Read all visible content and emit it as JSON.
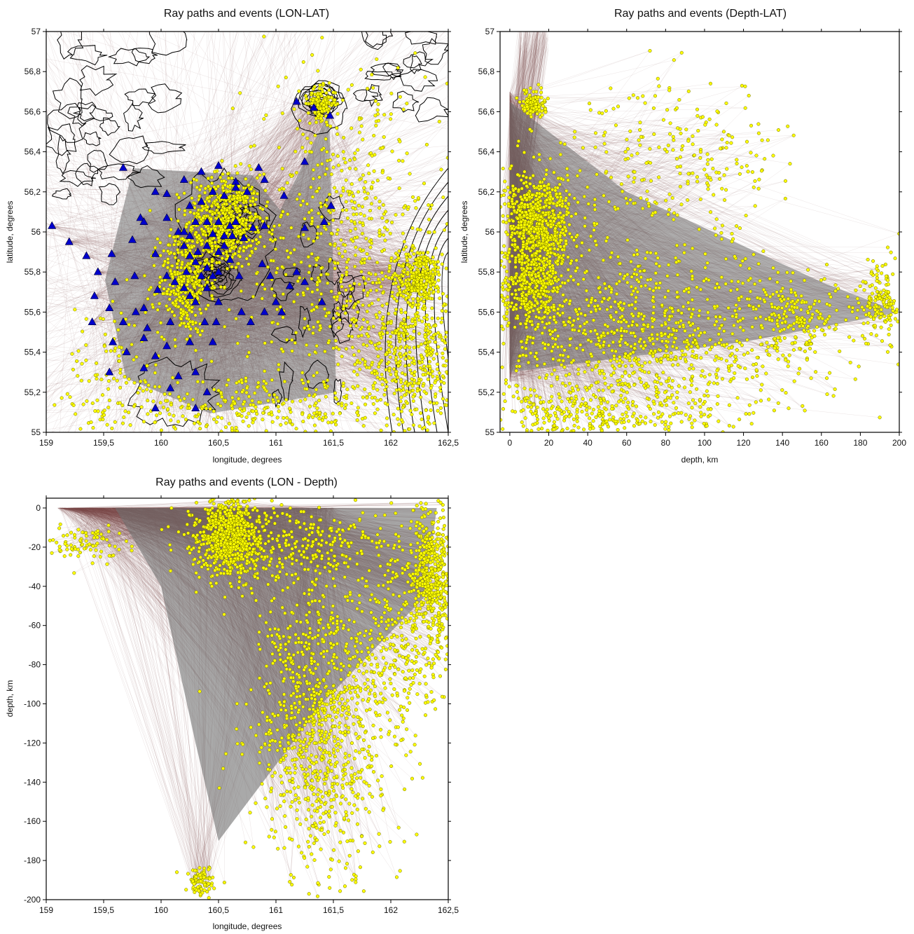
{
  "colors": {
    "ray": "#7a4848",
    "ray_core": "#6f6f6f",
    "event_fill": "#ffff00",
    "event_stroke": "#6b6b00",
    "station_fill": "#0000cc",
    "contour": "#000000"
  },
  "chart_data": [
    {
      "type": "scatter",
      "title": "Ray paths and events (LON-LAT)",
      "xlabel": "longitude, degrees",
      "ylabel": "latitude, degrees",
      "xlim": [
        159,
        162.5
      ],
      "ylim": [
        55,
        57
      ],
      "grid": false,
      "xticks": [
        "159",
        "159,5",
        "160",
        "160,5",
        "161",
        "161,5",
        "162",
        "162,5"
      ],
      "yticks": [
        "55",
        "55,2",
        "55,4",
        "55,6",
        "55,8",
        "56",
        "56,2",
        "56,4",
        "56,6",
        "56,8",
        "57"
      ],
      "series": [
        {
          "kind": "stations",
          "marker": "triangle",
          "points": [
            [
              159.05,
              56.03
            ],
            [
              159.2,
              55.95
            ],
            [
              159.35,
              55.88
            ],
            [
              159.57,
              55.89
            ],
            [
              159.45,
              55.8
            ],
            [
              159.6,
              55.75
            ],
            [
              159.42,
              55.68
            ],
            [
              159.55,
              55.62
            ],
            [
              159.78,
              55.6
            ],
            [
              159.67,
              56.32
            ],
            [
              159.82,
              56.07
            ],
            [
              159.85,
              56.05
            ],
            [
              159.75,
              55.96
            ],
            [
              159.95,
              55.89
            ],
            [
              159.77,
              55.78
            ],
            [
              159.97,
              55.71
            ],
            [
              159.85,
              55.62
            ],
            [
              159.67,
              55.55
            ],
            [
              159.88,
              55.52
            ],
            [
              160.08,
              55.55
            ],
            [
              159.4,
              55.55
            ],
            [
              159.58,
              55.45
            ],
            [
              159.7,
              55.4
            ],
            [
              159.85,
              55.47
            ],
            [
              160.05,
              55.43
            ],
            [
              159.95,
              55.38
            ],
            [
              159.55,
              55.3
            ],
            [
              159.85,
              55.32
            ],
            [
              159.95,
              55.12
            ],
            [
              160.08,
              55.22
            ],
            [
              160.15,
              55.28
            ],
            [
              160.3,
              55.3
            ],
            [
              160.4,
              55.2
            ],
            [
              160.3,
              55.12
            ],
            [
              160.25,
              55.45
            ],
            [
              160.45,
              55.45
            ],
            [
              160.38,
              55.55
            ],
            [
              160.05,
              56.19
            ],
            [
              160.2,
              56.26
            ],
            [
              160.35,
              56.3
            ],
            [
              160.5,
              56.33
            ],
            [
              160.65,
              56.25
            ],
            [
              160.85,
              56.32
            ],
            [
              160.9,
              56.26
            ],
            [
              161.07,
              56.18
            ],
            [
              160.25,
              56.13
            ],
            [
              160.35,
              56.15
            ],
            [
              160.45,
              56.2
            ],
            [
              160.55,
              56.18
            ],
            [
              160.65,
              56.22
            ],
            [
              160.75,
              56.2
            ],
            [
              160.05,
              56.07
            ],
            [
              160.15,
              56.0
            ],
            [
              160.25,
              55.98
            ],
            [
              160.3,
              56.05
            ],
            [
              160.4,
              56.05
            ],
            [
              160.45,
              55.99
            ],
            [
              160.5,
              56.05
            ],
            [
              160.55,
              55.98
            ],
            [
              160.6,
              56.03
            ],
            [
              160.62,
              55.98
            ],
            [
              160.65,
              56.05
            ],
            [
              160.72,
              55.97
            ],
            [
              160.8,
              56.02
            ],
            [
              160.9,
              56.03
            ],
            [
              160.2,
              55.93
            ],
            [
              160.25,
              55.88
            ],
            [
              160.32,
              55.9
            ],
            [
              160.4,
              55.93
            ],
            [
              160.5,
              55.9
            ],
            [
              160.55,
              55.93
            ],
            [
              160.22,
              55.8
            ],
            [
              160.3,
              55.85
            ],
            [
              160.35,
              55.78
            ],
            [
              160.4,
              55.82
            ],
            [
              160.45,
              55.78
            ],
            [
              160.5,
              55.8
            ],
            [
              160.6,
              55.86
            ],
            [
              160.68,
              55.78
            ],
            [
              160.88,
              55.84
            ],
            [
              160.95,
              55.78
            ],
            [
              160.05,
              55.78
            ],
            [
              160.12,
              55.75
            ],
            [
              160.2,
              55.72
            ],
            [
              160.25,
              55.68
            ],
            [
              160.3,
              55.65
            ],
            [
              160.4,
              55.72
            ],
            [
              160.5,
              55.65
            ],
            [
              160.48,
              55.55
            ],
            [
              160.7,
              55.6
            ],
            [
              160.78,
              55.55
            ],
            [
              160.9,
              55.6
            ],
            [
              161.05,
              55.6
            ],
            [
              161.25,
              55.75
            ],
            [
              161.12,
              55.73
            ],
            [
              161.18,
              55.8
            ],
            [
              161.0,
              55.65
            ],
            [
              161.4,
              55.65
            ],
            [
              161.42,
              56.05
            ],
            [
              161.25,
              56.02
            ],
            [
              161.48,
              56.13
            ],
            [
              161.18,
              56.65
            ],
            [
              161.33,
              56.62
            ],
            [
              161.47,
              56.58
            ],
            [
              161.25,
              56.35
            ],
            [
              160.2,
              56.0
            ],
            [
              159.95,
              56.2
            ]
          ]
        },
        {
          "kind": "events",
          "marker": "circle",
          "clusters": [
            {
              "lon": 160.55,
              "lat": 56.05,
              "sx": 0.16,
              "sy": 0.12,
              "n": 620
            },
            {
              "lon": 160.2,
              "lat": 55.75,
              "sx": 0.11,
              "sy": 0.13,
              "n": 380
            },
            {
              "lon": 162.25,
              "lat": 55.78,
              "sx": 0.1,
              "sy": 0.07,
              "n": 260
            },
            {
              "lon": 161.4,
              "lat": 56.64,
              "sx": 0.06,
              "sy": 0.04,
              "n": 130
            },
            {
              "lon": 162.2,
              "lat": 55.4,
              "sx": 0.22,
              "sy": 0.25,
              "n": 520
            },
            {
              "lon": 161.6,
              "lat": 55.9,
              "sx": 0.45,
              "sy": 0.45,
              "n": 700
            },
            {
              "lon": 159.6,
              "lat": 55.25,
              "sx": 0.35,
              "sy": 0.2,
              "n": 130
            },
            {
              "lon": 160.8,
              "lat": 55.1,
              "sx": 0.6,
              "sy": 0.08,
              "n": 280
            }
          ]
        }
      ]
    },
    {
      "type": "scatter",
      "title": "Ray paths and events (Depth-LAT)",
      "xlabel": "depth, km",
      "ylabel": "latitude, degrees",
      "xlim": [
        -5,
        200
      ],
      "ylim": [
        55,
        57
      ],
      "grid": false,
      "xticks": [
        "0",
        "20",
        "40",
        "60",
        "80",
        "100",
        "120",
        "140",
        "160",
        "180",
        "200"
      ],
      "yticks": [
        "55",
        "55,2",
        "55,4",
        "55,6",
        "55,8",
        "56",
        "56,2",
        "56,4",
        "56,6",
        "56,8",
        "57"
      ],
      "series": [
        {
          "kind": "events",
          "marker": "circle",
          "clusters": [
            {
              "depth": 15,
              "lat": 56.05,
              "sx": 9,
              "sy": 0.12,
              "n": 650
            },
            {
              "depth": 12,
              "lat": 55.75,
              "sx": 8,
              "sy": 0.12,
              "n": 420
            },
            {
              "depth": 12,
              "lat": 56.64,
              "sx": 3,
              "sy": 0.03,
              "n": 120
            },
            {
              "depth": 190,
              "lat": 55.65,
              "sx": 5,
              "sy": 0.1,
              "n": 150
            },
            {
              "depth": 150,
              "lat": 55.58,
              "sx": 12,
              "sy": 0.1,
              "n": 150
            },
            {
              "depth": 75,
              "lat": 55.45,
              "sx": 45,
              "sy": 0.22,
              "n": 1000
            },
            {
              "depth": 85,
              "lat": 56.35,
              "sx": 30,
              "sy": 0.2,
              "n": 260
            },
            {
              "depth": 40,
              "lat": 55.1,
              "sx": 30,
              "sy": 0.08,
              "n": 300
            }
          ]
        }
      ]
    },
    {
      "type": "scatter",
      "title": "Ray paths and events (LON - Depth)",
      "xlabel": "longitude, degrees",
      "ylabel": "depth, km",
      "xlim": [
        159,
        162.5
      ],
      "ylim": [
        -200,
        5
      ],
      "grid": false,
      "xticks": [
        "159",
        "159,5",
        "160",
        "160,5",
        "161",
        "161,5",
        "162",
        "162,5"
      ],
      "yticks": [
        "-200",
        "-180",
        "-160",
        "-140",
        "-120",
        "-100",
        "-80",
        "-60",
        "-40",
        "-20",
        "0"
      ],
      "series": [
        {
          "kind": "events",
          "marker": "circle",
          "clusters": [
            {
              "lon": 160.6,
              "depth": -14,
              "sx": 0.14,
              "sy": 10,
              "n": 700
            },
            {
              "lon": 162.35,
              "depth": -35,
              "sx": 0.1,
              "sy": 18,
              "n": 450
            },
            {
              "lon": 159.3,
              "depth": -18,
              "sx": 0.2,
              "sy": 5,
              "n": 90
            },
            {
              "lon": 161.2,
              "depth": -20,
              "sx": 0.45,
              "sy": 10,
              "n": 280
            },
            {
              "lon": 160.35,
              "depth": -190,
              "sx": 0.06,
              "sy": 4,
              "n": 90
            },
            {
              "lon": 161.4,
              "depth": -110,
              "sx": 0.3,
              "sy": 40,
              "n": 1000
            },
            {
              "lon": 162.1,
              "depth": -65,
              "sx": 0.25,
              "sy": 25,
              "n": 350
            }
          ]
        }
      ]
    }
  ]
}
